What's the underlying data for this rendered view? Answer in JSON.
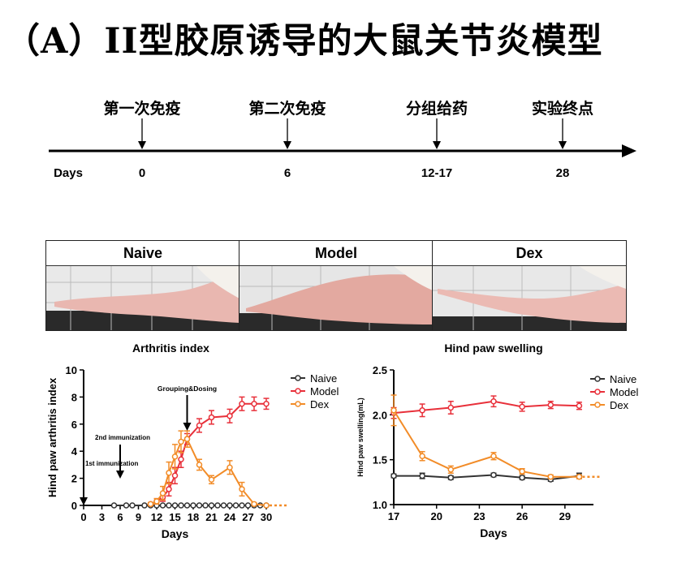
{
  "title": "（A）II型胶原诱导的大鼠关节炎模型",
  "timeline": {
    "days_label": "Days",
    "events": [
      {
        "label": "第一次免疫",
        "day": "0"
      },
      {
        "label": "第二次免疫",
        "day": "6"
      },
      {
        "label": "分组给药",
        "day": "12-17"
      },
      {
        "label": "实验终点",
        "day": "28"
      }
    ]
  },
  "photos": {
    "panels": [
      {
        "label": "Naive"
      },
      {
        "label": "Model"
      },
      {
        "label": "Dex"
      }
    ]
  },
  "colors": {
    "naive": "#333333",
    "model": "#e8303a",
    "dex": "#f28c28"
  },
  "chart_data": [
    {
      "type": "line",
      "title": "Arthritis index",
      "xlabel": "Days",
      "ylabel": "Hind paw arthritis index",
      "xlim": [
        0,
        30
      ],
      "ylim": [
        0,
        10
      ],
      "xticks": [
        0,
        3,
        6,
        9,
        12,
        15,
        18,
        21,
        24,
        27,
        30
      ],
      "yticks": [
        0,
        2,
        4,
        6,
        8,
        10
      ],
      "legend": "top-right",
      "annotations": [
        {
          "text": "1st immunization",
          "x": 0
        },
        {
          "text": "2nd immunization",
          "x": 6
        },
        {
          "text": "Grouping&Dosing",
          "x": 17
        }
      ],
      "series": [
        {
          "name": "Naive",
          "x": [
            5,
            7,
            8,
            10,
            11,
            12,
            13,
            14,
            15,
            16,
            17,
            18,
            19,
            20,
            21,
            22,
            23,
            24,
            25,
            26,
            27,
            28,
            29,
            30
          ],
          "y": [
            0,
            0,
            0,
            0,
            0,
            0,
            0,
            0,
            0,
            0,
            0,
            0,
            0,
            0,
            0,
            0,
            0,
            0,
            0,
            0,
            0,
            0,
            0,
            0
          ]
        },
        {
          "name": "Model",
          "x": [
            11,
            12,
            13,
            14,
            15,
            16,
            17,
            19,
            21,
            24,
            26,
            28,
            30
          ],
          "y": [
            0.1,
            0.3,
            0.6,
            1.2,
            2.2,
            3.4,
            4.9,
            5.9,
            6.5,
            6.6,
            7.5,
            7.5,
            7.5
          ],
          "err": [
            0.1,
            0.2,
            0.3,
            0.5,
            0.6,
            0.6,
            0.4,
            0.5,
            0.5,
            0.5,
            0.5,
            0.5,
            0.4
          ]
        },
        {
          "name": "Dex",
          "x": [
            11,
            12,
            13,
            14,
            15,
            16,
            17,
            19,
            21,
            24,
            26,
            28,
            30
          ],
          "y": [
            0.1,
            0.3,
            0.9,
            2.4,
            3.6,
            4.7,
            4.9,
            3.0,
            1.9,
            2.8,
            1.2,
            0.1,
            0
          ],
          "err": [
            0.1,
            0.2,
            0.5,
            0.8,
            0.9,
            0.8,
            0.6,
            0.4,
            0.3,
            0.5,
            0.5,
            0.1,
            0
          ]
        }
      ]
    },
    {
      "type": "line",
      "title": "Hind paw swelling",
      "xlabel": "Days",
      "ylabel": "Hind paw swelling(mL)",
      "xlim": [
        17,
        31
      ],
      "ylim": [
        1.0,
        2.5
      ],
      "xticks": [
        17,
        20,
        23,
        26,
        29
      ],
      "yticks": [
        1.0,
        1.5,
        2.0,
        2.5
      ],
      "legend": "top-right",
      "series": [
        {
          "name": "Naive",
          "x": [
            17,
            19,
            21,
            24,
            26,
            28,
            30
          ],
          "y": [
            1.32,
            1.32,
            1.3,
            1.33,
            1.3,
            1.28,
            1.32
          ],
          "err": [
            0.02,
            0.03,
            0.02,
            0.02,
            0.02,
            0.02,
            0.03
          ]
        },
        {
          "name": "Model",
          "x": [
            17,
            19,
            21,
            24,
            26,
            28,
            30
          ],
          "y": [
            2.02,
            2.05,
            2.08,
            2.15,
            2.09,
            2.11,
            2.1
          ],
          "err": [
            0.06,
            0.07,
            0.07,
            0.06,
            0.05,
            0.04,
            0.04
          ]
        },
        {
          "name": "Dex",
          "x": [
            17,
            19,
            21,
            24,
            26,
            28,
            30
          ],
          "y": [
            2.05,
            1.54,
            1.39,
            1.54,
            1.37,
            1.31,
            1.31
          ],
          "err": [
            0.17,
            0.05,
            0.04,
            0.04,
            0.03,
            0.02,
            0.02
          ]
        }
      ]
    }
  ]
}
